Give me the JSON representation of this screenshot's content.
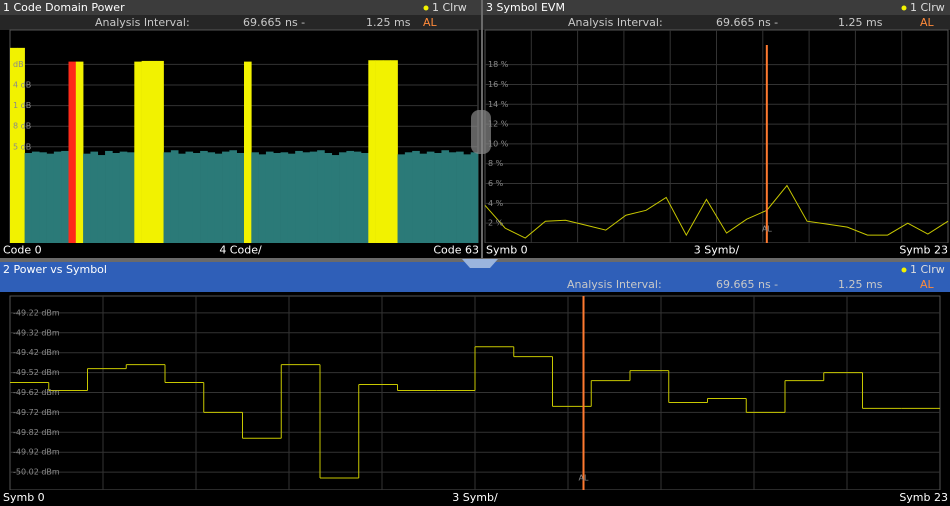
{
  "panels": [
    {
      "title": "1 Code Domain Power",
      "trace": "1 Clrw",
      "analysis": {
        "label": "Analysis Interval:",
        "start": "69.665 ns -",
        "stop": "1.25 ms",
        "flag": "AL"
      },
      "chart": {
        "type": "bar",
        "values": [
          29.4,
          29.4,
          14.1,
          14.3,
          14.2,
          14.0,
          14.3,
          14.4,
          27.4,
          27.4,
          14.0,
          14.3,
          13.8,
          14.4,
          14.1,
          14.3,
          14.2,
          27.4,
          27.5,
          27.5,
          27.5,
          14.2,
          14.5,
          14.0,
          14.3,
          14.1,
          14.4,
          14.2,
          14.0,
          14.3,
          14.5,
          14.1,
          27.4,
          14.2,
          13.9,
          14.3,
          14.1,
          14.2,
          14.0,
          14.4,
          14.2,
          14.3,
          14.5,
          14.1,
          13.8,
          14.2,
          14.4,
          14.3,
          14.1,
          27.6,
          27.6,
          27.6,
          27.6,
          13.9,
          14.2,
          14.4,
          14.0,
          14.3,
          14.1,
          14.5,
          14.2,
          14.3,
          13.9,
          14.2
        ],
        "colors": [
          "#f2f200",
          "#f2f200",
          "#2b7a78",
          "#2b7a78",
          "#2b7a78",
          "#2b7a78",
          "#2b7a78",
          "#2b7a78",
          "#ff2a1a",
          "#f2f200",
          "#2b7a78",
          "#2b7a78",
          "#2b7a78",
          "#2b7a78",
          "#2b7a78",
          "#2b7a78",
          "#2b7a78",
          "#f2f200",
          "#f2f200",
          "#f2f200",
          "#f2f200",
          "#2b7a78",
          "#2b7a78",
          "#2b7a78",
          "#2b7a78",
          "#2b7a78",
          "#2b7a78",
          "#2b7a78",
          "#2b7a78",
          "#2b7a78",
          "#2b7a78",
          "#2b7a78",
          "#f2f200",
          "#2b7a78",
          "#2b7a78",
          "#2b7a78",
          "#2b7a78",
          "#2b7a78",
          "#2b7a78",
          "#2b7a78",
          "#2b7a78",
          "#2b7a78",
          "#2b7a78",
          "#2b7a78",
          "#2b7a78",
          "#2b7a78",
          "#2b7a78",
          "#2b7a78",
          "#2b7a78",
          "#f2f200",
          "#f2f200",
          "#f2f200",
          "#f2f200",
          "#2b7a78",
          "#2b7a78",
          "#2b7a78",
          "#2b7a78",
          "#2b7a78",
          "#2b7a78",
          "#2b7a78",
          "#2b7a78",
          "#2b7a78",
          "#2b7a78",
          "#2b7a78"
        ],
        "ylim": [
          1,
          32
        ],
        "yticks": [
          {
            "value": 27,
            "label": "dB"
          },
          {
            "value": 24,
            "label": "4 dB"
          },
          {
            "value": 21,
            "label": "1 dB"
          },
          {
            "value": 18,
            "label": "8 dB"
          },
          {
            "value": 15,
            "label": "5 dB"
          }
        ]
      },
      "x_labels": {
        "left": "Code 0",
        "center": "4 Code/",
        "right": "Code 63"
      }
    },
    {
      "title": "3 Symbol EVM",
      "trace": "1 Clrw",
      "analysis": {
        "label": "Analysis Interval:",
        "start": "69.665 ns -",
        "stop": "1.25 ms",
        "flag": "AL"
      },
      "chart": {
        "type": "line",
        "color": "#c8c800",
        "values": [
          3.8,
          1.5,
          0.5,
          2.2,
          2.3,
          1.8,
          1.3,
          2.8,
          3.3,
          4.6,
          0.8,
          4.4,
          1.0,
          2.4,
          3.3,
          5.8,
          2.2,
          1.9,
          1.6,
          0.8,
          0.8,
          2.0,
          0.9,
          2.2
        ],
        "ylim": [
          0,
          21.5
        ],
        "yticks": [
          {
            "value": 18,
            "label": "18 %"
          },
          {
            "value": 16,
            "label": "16 %"
          },
          {
            "value": 14,
            "label": "14 %"
          },
          {
            "value": 12,
            "label": "12 %"
          },
          {
            "value": 10,
            "label": "10 %"
          },
          {
            "value": 8,
            "label": "8 %"
          },
          {
            "value": 6,
            "label": "6 %"
          },
          {
            "value": 4,
            "label": "4 %"
          },
          {
            "value": 2,
            "label": "2 %"
          }
        ],
        "marker": {
          "x": 14,
          "label": "AL"
        }
      },
      "x_labels": {
        "left": "Symb 0",
        "center": "3 Symb/",
        "right": "Symb 23"
      }
    },
    {
      "title": "2 Power vs Symbol",
      "trace": "1 Clrw",
      "analysis": {
        "label": "Analysis Interval:",
        "start": "69.665 ns -",
        "stop": "1.25 ms",
        "flag": "AL"
      },
      "chart": {
        "type": "step",
        "color": "#c8c800",
        "values": [
          -49.57,
          -49.61,
          -49.5,
          -49.48,
          -49.57,
          -49.72,
          -49.85,
          -49.48,
          -50.05,
          -49.58,
          -49.61,
          -49.61,
          -49.39,
          -49.44,
          -49.69,
          -49.56,
          -49.51,
          -49.67,
          -49.65,
          -49.72,
          -49.56,
          -49.52,
          -49.7,
          -49.7
        ],
        "ylim": [
          -50.11,
          -49.135
        ],
        "yticks": [
          {
            "value": -49.22,
            "label": "-49.22 dBm"
          },
          {
            "value": -49.32,
            "label": "-49.32 dBm"
          },
          {
            "value": -49.42,
            "label": "-49.42 dBm"
          },
          {
            "value": -49.52,
            "label": "-49.52 dBm"
          },
          {
            "value": -49.62,
            "label": "-49.62 dBm"
          },
          {
            "value": -49.72,
            "label": "-49.72 dBm"
          },
          {
            "value": -49.82,
            "label": "-49.82 dBm"
          },
          {
            "value": -49.92,
            "label": "-49.92 dBm"
          },
          {
            "value": -50.02,
            "label": "-50.02 dBm"
          }
        ],
        "marker": {
          "x": 14.8,
          "label": "AL"
        }
      },
      "x_labels": {
        "left": "Symb 0",
        "center": "3 Symb/",
        "right": "Symb 23"
      }
    }
  ]
}
